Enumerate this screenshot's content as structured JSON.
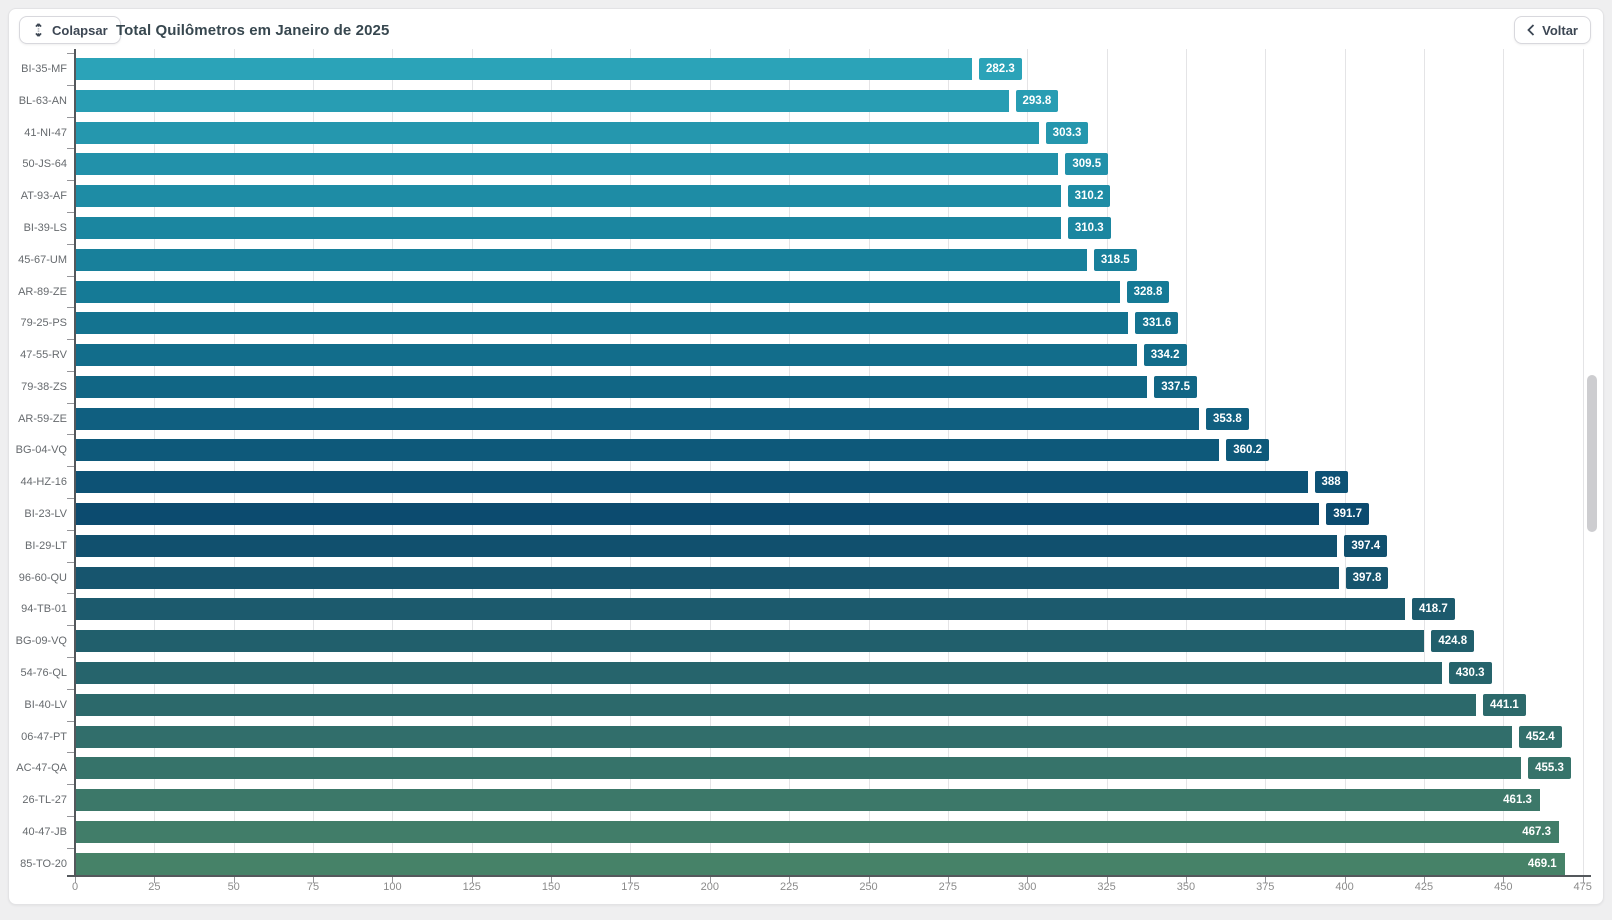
{
  "header": {
    "collapse_button": "Colapsar",
    "title": "Total Quilômetros em Janeiro de 2025",
    "back_button": "Voltar"
  },
  "icons": {
    "collapse": "unfold-vertical-icon",
    "back": "chevron-left-icon"
  },
  "colors": {
    "page_bg": "#efeff0",
    "card_bg": "#ffffff",
    "axis": "#54585c",
    "grid": "#e4e4e6",
    "tick_label": "#8b8b8b",
    "category_label": "#666a6e",
    "title_text": "#37474f",
    "scrollbar_thumb": "#cdcdd0"
  },
  "chart_data": {
    "type": "bar",
    "orientation": "horizontal",
    "title": "Total Quilômetros em Janeiro de 2025",
    "xlabel": "",
    "ylabel": "",
    "xlim": [
      0,
      475
    ],
    "x_ticks": [
      0,
      25,
      50,
      75,
      100,
      125,
      150,
      175,
      200,
      225,
      250,
      275,
      300,
      325,
      350,
      375,
      400,
      425,
      450,
      475
    ],
    "grid": "vertical-light",
    "legend": "none",
    "value_label_style": "colored-chip-white-text",
    "categories": [
      "BI-35-MF",
      "BL-63-AN",
      "41-NI-47",
      "50-JS-64",
      "AT-93-AF",
      "BI-39-LS",
      "45-67-UM",
      "AR-89-ZE",
      "79-25-PS",
      "47-55-RV",
      "79-38-ZS",
      "AR-59-ZE",
      "BG-04-VQ",
      "44-HZ-16",
      "BI-23-LV",
      "BI-29-LT",
      "96-60-QU",
      "94-TB-01",
      "BG-09-VQ",
      "54-76-QL",
      "BI-40-LV",
      "06-47-PT",
      "AC-47-QA",
      "26-TL-27",
      "40-47-JB",
      "85-TO-20"
    ],
    "values": [
      282.3,
      293.8,
      303.3,
      309.5,
      310.2,
      310.3,
      318.5,
      328.8,
      331.6,
      334.2,
      337.5,
      353.8,
      360.2,
      388,
      391.7,
      397.4,
      397.8,
      418.7,
      424.8,
      430.3,
      441.1,
      452.4,
      455.3,
      461.3,
      467.3,
      469.1
    ],
    "value_labels": [
      "282.3",
      "293.8",
      "303.3",
      "309.5",
      "310.2",
      "310.3",
      "318.5",
      "328.8",
      "331.6",
      "334.2",
      "337.5",
      "353.8",
      "360.2",
      "388",
      "391.7",
      "397.4",
      "397.8",
      "418.7",
      "424.8",
      "430.3",
      "441.1",
      "452.4",
      "455.3",
      "461.3",
      "467.3",
      "469.1"
    ],
    "bar_colors": [
      "#2BA3B8",
      "#289DB3",
      "#2597AE",
      "#2291AA",
      "#1E8CA5",
      "#1B86A0",
      "#18809B",
      "#157A96",
      "#147390",
      "#126D8B",
      "#116685",
      "#105F80",
      "#0E597A",
      "#0D5275",
      "#0C4B6F",
      "#11506E",
      "#17556E",
      "#1C5A6D",
      "#215F6C",
      "#26646C",
      "#2C696B",
      "#316E6B",
      "#36736A",
      "#3C7869",
      "#417D69",
      "#468268"
    ]
  },
  "scrollbar": {
    "visible": true,
    "orientation": "vertical"
  }
}
